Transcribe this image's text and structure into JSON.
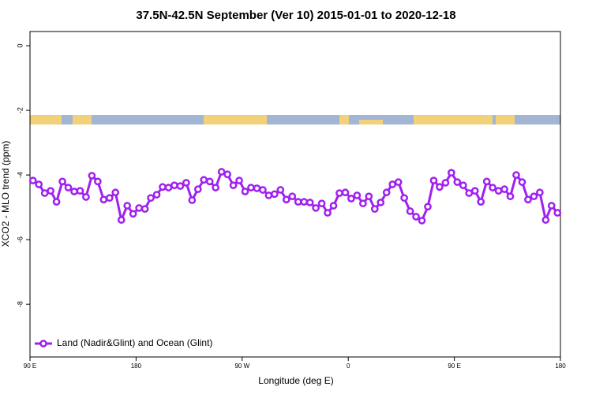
{
  "chart_data": {
    "type": "line",
    "title": "37.5N-42.5N September (Ver 10)   2015-01-01 to 2020-12-18",
    "x_label": "Longitude (deg E)",
    "y_label": "XCO2 - MLO trend (ppm)",
    "xlim": [
      90,
      540
    ],
    "xticks": [
      {
        "value": 90,
        "label": "90 E"
      },
      {
        "value": 180,
        "label": "180"
      },
      {
        "value": 270,
        "label": "90 W"
      },
      {
        "value": 360,
        "label": "0"
      },
      {
        "value": 450,
        "label": "90 E"
      },
      {
        "value": 540,
        "label": "180"
      }
    ],
    "ylim": [
      -9.63,
      0.44
    ],
    "yticks": [
      0,
      -2,
      -4,
      -6,
      -8
    ],
    "legend": "bottom-left",
    "x": [
      92.5,
      97.5,
      102.5,
      107.5,
      112.5,
      117.5,
      122.5,
      127.5,
      132.5,
      137.5,
      142.5,
      147.5,
      152.5,
      157.5,
      162.5,
      167.5,
      172.5,
      177.5,
      182.5,
      187.5,
      192.5,
      197.5,
      202.5,
      207.5,
      212.5,
      217.5,
      222.5,
      227.5,
      232.5,
      237.5,
      242.5,
      247.5,
      252.5,
      257.5,
      262.5,
      267.5,
      272.5,
      277.5,
      282.5,
      287.5,
      292.5,
      297.5,
      302.5,
      307.5,
      312.5,
      317.5,
      322.5,
      327.5,
      332.5,
      337.5,
      342.5,
      347.5,
      352.5,
      357.5,
      362.5,
      367.5,
      372.5,
      377.5,
      382.5,
      387.5,
      392.5,
      397.5,
      402.5,
      407.5,
      412.5,
      417.5,
      422.5,
      427.5,
      432.5,
      437.5,
      442.5,
      447.5,
      452.5,
      457.5,
      462.5,
      467.5,
      472.5,
      477.5,
      482.5,
      487.5,
      492.5,
      497.5,
      502.5,
      507.5,
      512.5,
      517.5,
      522.5,
      527.5,
      532.5,
      537.5
    ],
    "series": [
      {
        "name": "Land (Nadir&Glint) and Ocean (Glint)",
        "color": "#a020f0",
        "values": [
          -4.17,
          -4.29,
          -4.56,
          -4.49,
          -4.83,
          -4.2,
          -4.39,
          -4.51,
          -4.49,
          -4.68,
          -4.02,
          -4.2,
          -4.76,
          -4.71,
          -4.54,
          -5.39,
          -4.95,
          -5.2,
          -5.02,
          -5.05,
          -4.71,
          -4.61,
          -4.37,
          -4.39,
          -4.32,
          -4.34,
          -4.24,
          -4.78,
          -4.44,
          -4.15,
          -4.2,
          -4.39,
          -3.9,
          -3.98,
          -4.32,
          -4.17,
          -4.51,
          -4.39,
          -4.41,
          -4.46,
          -4.63,
          -4.59,
          -4.46,
          -4.76,
          -4.66,
          -4.83,
          -4.83,
          -4.85,
          -5.02,
          -4.88,
          -5.17,
          -4.95,
          -4.56,
          -4.54,
          -4.73,
          -4.63,
          -4.88,
          -4.66,
          -5.05,
          -4.85,
          -4.54,
          -4.29,
          -4.22,
          -4.71,
          -5.12,
          -5.29,
          -5.41,
          -4.98,
          -4.17,
          -4.37,
          -4.24,
          -3.93,
          -4.22,
          -4.32,
          -4.56,
          -4.49,
          -4.83,
          -4.2,
          -4.39,
          -4.49,
          -4.44,
          -4.66,
          -4.0,
          -4.22,
          -4.76,
          -4.66,
          -4.54,
          -5.39,
          -4.95,
          -5.17
        ]
      }
    ]
  }
}
